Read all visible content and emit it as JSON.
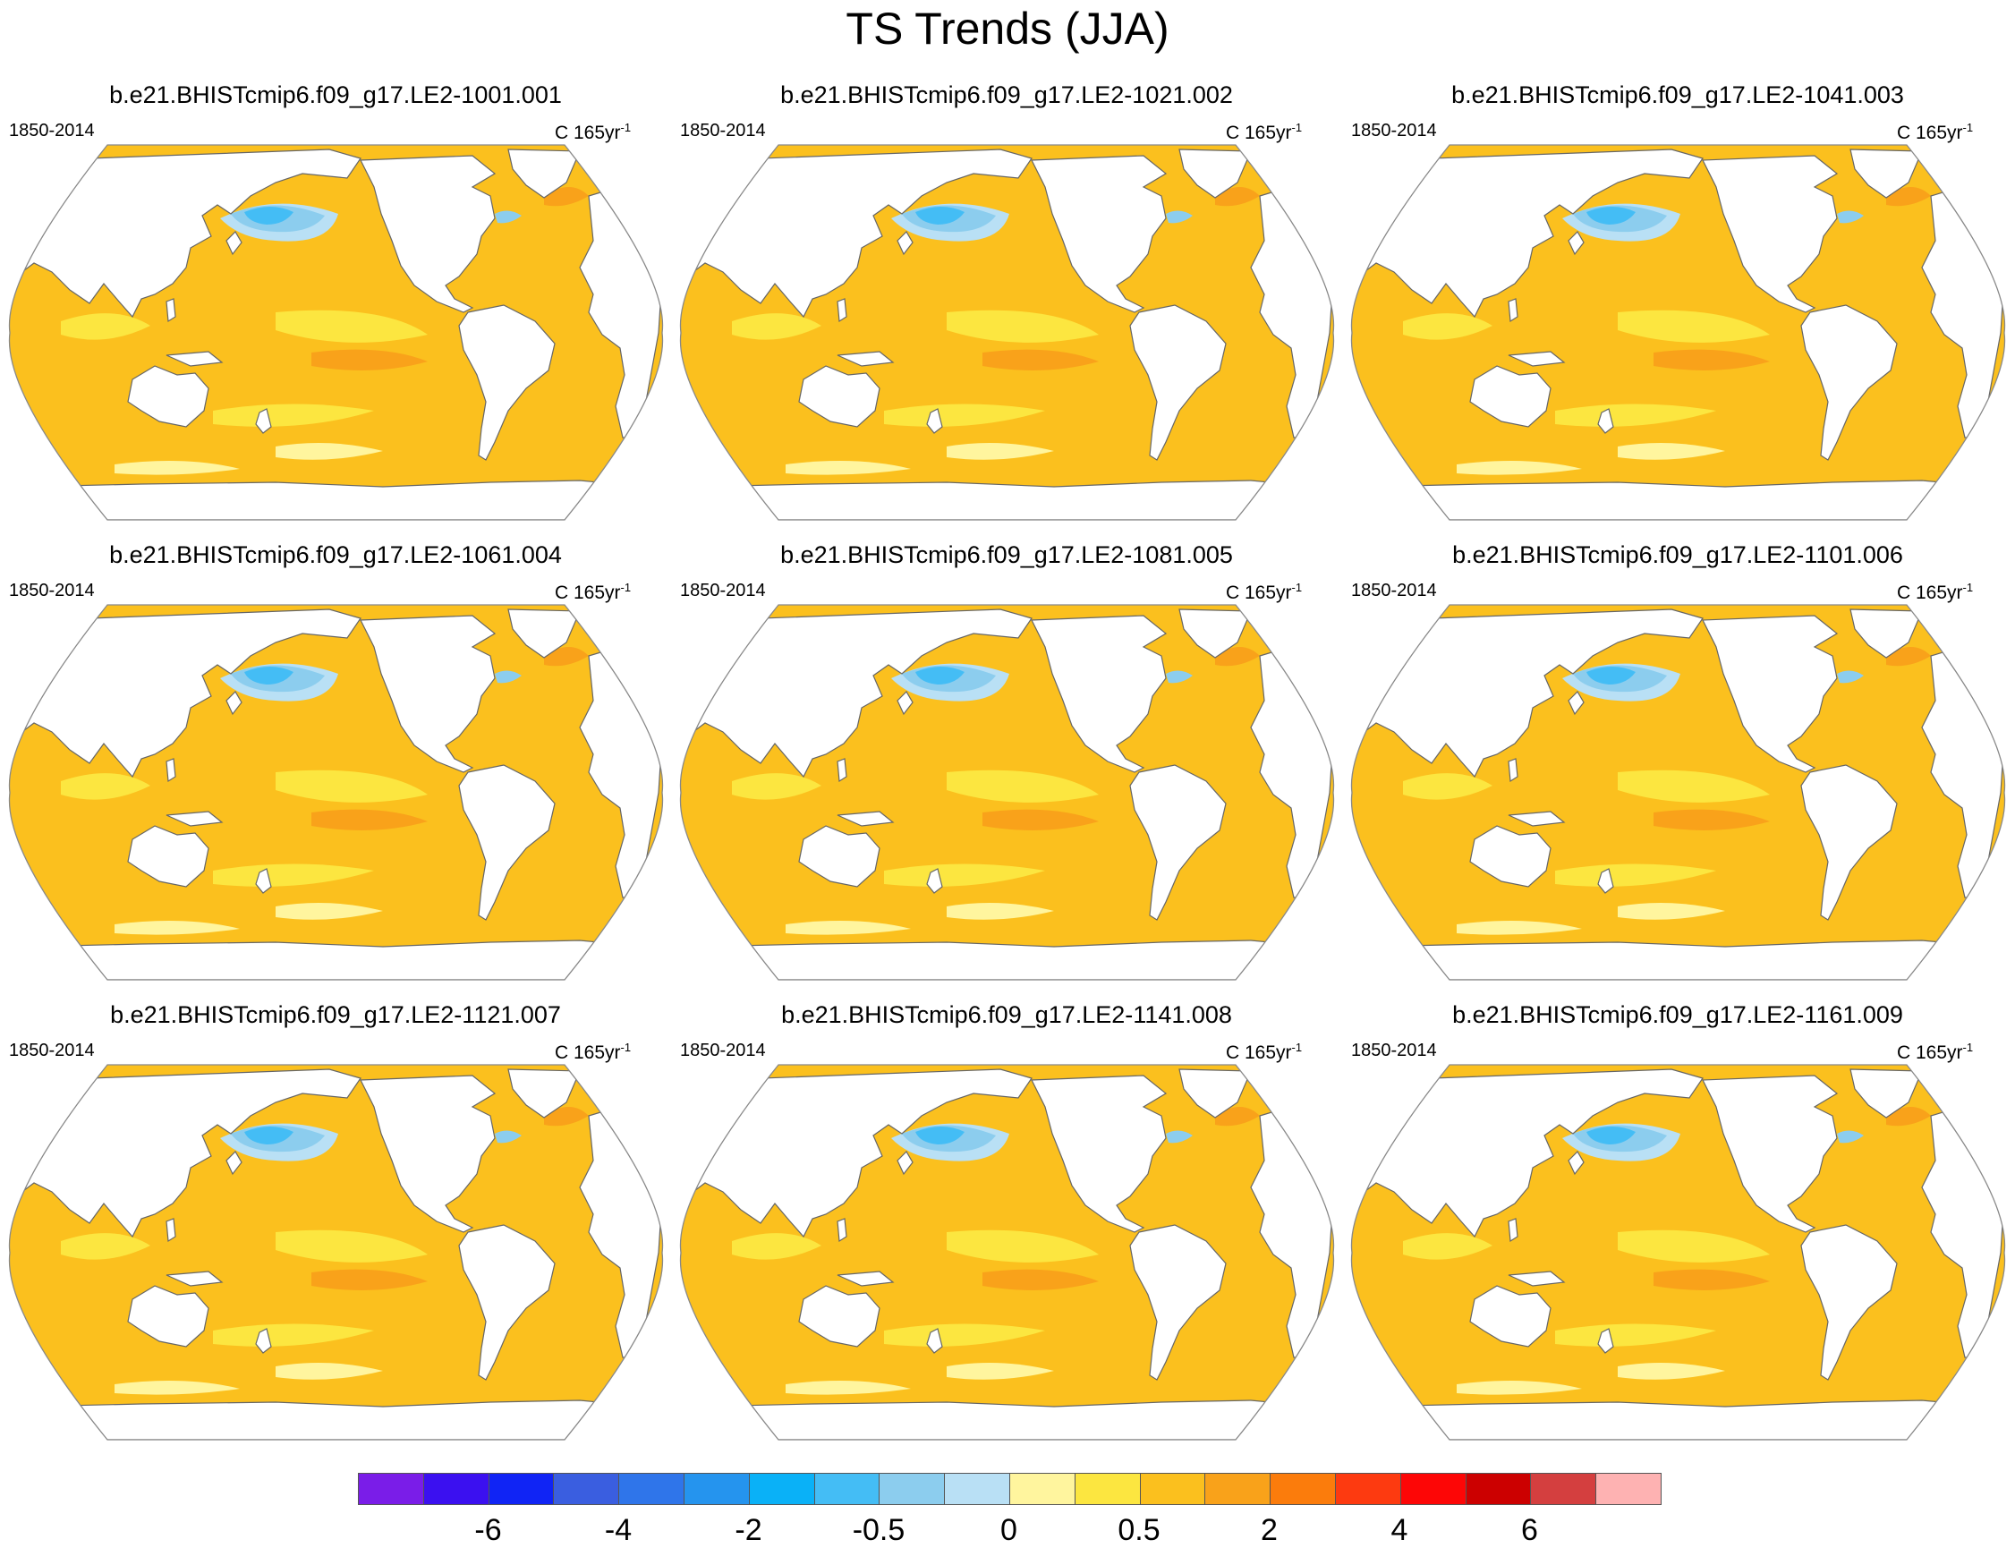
{
  "title": "TS Trends (JJA)",
  "panels": [
    {
      "title": "b.e21.BHISTcmip6.f09_g17.LE2-1001.001",
      "period": "1850-2014",
      "units": "C 165yr",
      "units_exp": "-1",
      "map_type": "global-robinson-trend-map"
    },
    {
      "title": "b.e21.BHISTcmip6.f09_g17.LE2-1021.002",
      "period": "1850-2014",
      "units": "C 165yr",
      "units_exp": "-1",
      "map_type": "global-robinson-trend-map"
    },
    {
      "title": "b.e21.BHISTcmip6.f09_g17.LE2-1041.003",
      "period": "1850-2014",
      "units": "C 165yr",
      "units_exp": "-1",
      "map_type": "global-robinson-trend-map"
    },
    {
      "title": "b.e21.BHISTcmip6.f09_g17.LE2-1061.004",
      "period": "1850-2014",
      "units": "C 165yr",
      "units_exp": "-1",
      "map_type": "global-robinson-trend-map"
    },
    {
      "title": "b.e21.BHISTcmip6.f09_g17.LE2-1081.005",
      "period": "1850-2014",
      "units": "C 165yr",
      "units_exp": "-1",
      "map_type": "global-robinson-trend-map"
    },
    {
      "title": "b.e21.BHISTcmip6.f09_g17.LE2-1101.006",
      "period": "1850-2014",
      "units": "C 165yr",
      "units_exp": "-1",
      "map_type": "global-robinson-trend-map"
    },
    {
      "title": "b.e21.BHISTcmip6.f09_g17.LE2-1121.007",
      "period": "1850-2014",
      "units": "C 165yr",
      "units_exp": "-1",
      "map_type": "global-robinson-trend-map"
    },
    {
      "title": "b.e21.BHISTcmip6.f09_g17.LE2-1141.008",
      "period": "1850-2014",
      "units": "C 165yr",
      "units_exp": "-1",
      "map_type": "global-robinson-trend-map"
    },
    {
      "title": "b.e21.BHISTcmip6.f09_g17.LE2-1161.009",
      "period": "1850-2014",
      "units": "C 165yr",
      "units_exp": "-1",
      "map_type": "global-robinson-trend-map"
    }
  ],
  "map_colors": {
    "ocean_base": "#fbc01e",
    "warm_light": "#fce640",
    "warm_pale": "#fff59e",
    "warm_strong": "#f9a21a",
    "cool_pale": "#b9e0f5",
    "cool_light": "#8ccdee",
    "cool_mid": "#44bdf5",
    "land": "#ffffff",
    "coast": "#666666"
  },
  "colorbar": {
    "colors": [
      "#7a1de8",
      "#3b10f0",
      "#1024f5",
      "#3a5ee0",
      "#2f75ea",
      "#2594ee",
      "#0ab1f7",
      "#44bdf5",
      "#8ccdee",
      "#b9e0f5",
      "#fff59e",
      "#fce640",
      "#fbc01e",
      "#f9a21a",
      "#fb7c0c",
      "#fd3a10",
      "#fd0606",
      "#cc0000",
      "#d43f3f",
      "#feb2b2"
    ],
    "labels": [
      "-6",
      "-4",
      "-2",
      "-0.5",
      "0",
      "0.5",
      "2",
      "4",
      "6"
    ],
    "label_after_box": [
      1,
      3,
      5,
      7,
      9,
      11,
      13,
      15,
      17
    ]
  }
}
